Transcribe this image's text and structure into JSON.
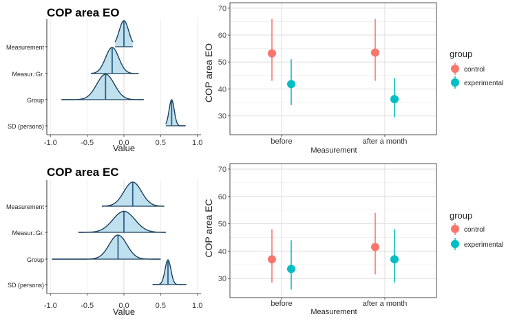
{
  "chart_data": [
    {
      "type": "ridgeline",
      "title": "COP area EO",
      "xlabel": "Value",
      "xlim": [
        -1.05,
        1.05
      ],
      "xticks": [
        -1.0,
        -0.5,
        0.0,
        0.5,
        1.0
      ],
      "xtick_labels": [
        "-1.0",
        "-0.5",
        "0.0",
        "0.5",
        "1.0"
      ],
      "rows": [
        {
          "label": "Measurement",
          "median": 0.0,
          "spread": 0.065,
          "lo": -0.12,
          "hi": 0.12
        },
        {
          "label": "Measur.:Gr.",
          "median": -0.16,
          "spread": 0.09,
          "lo": -0.45,
          "hi": 0.2
        },
        {
          "label": "Group",
          "median": -0.25,
          "spread": 0.12,
          "lo": -0.85,
          "hi": 0.27
        },
        {
          "label": "SD (persons)",
          "median": 0.65,
          "spread": 0.035,
          "lo": 0.57,
          "hi": 0.84
        }
      ]
    },
    {
      "type": "ridgeline",
      "title": "COP area EC",
      "xlabel": "Value",
      "xlim": [
        -1.05,
        1.05
      ],
      "xticks": [
        -1.0,
        -0.5,
        0.0,
        0.5,
        1.0
      ],
      "xtick_labels": [
        "-1.0",
        "-0.5",
        "0.0",
        "0.5",
        "1.0"
      ],
      "rows": [
        {
          "label": "Measurement",
          "median": 0.12,
          "spread": 0.12,
          "lo": -0.3,
          "hi": 0.55
        },
        {
          "label": "Measur.:Gr.",
          "median": 0.0,
          "spread": 0.15,
          "lo": -0.62,
          "hi": 0.57
        },
        {
          "label": "Group",
          "median": -0.08,
          "spread": 0.12,
          "lo": -0.98,
          "hi": 0.5
        },
        {
          "label": "SD (persons)",
          "median": 0.6,
          "spread": 0.04,
          "lo": 0.39,
          "hi": 0.85
        }
      ]
    },
    {
      "type": "point-range",
      "ylabel": "COP area EO",
      "xlabel": "Measurement",
      "categories": [
        "before",
        "after a month"
      ],
      "ylim": [
        23,
        72
      ],
      "yticks": [
        30,
        40,
        50,
        60,
        70
      ],
      "series": [
        {
          "name": "control",
          "color": "#f8766d",
          "values": [
            53.2,
            53.5
          ],
          "lower": [
            43.0,
            43.0
          ],
          "upper": [
            66.0,
            66.0
          ]
        },
        {
          "name": "experimental",
          "color": "#00bfc4",
          "values": [
            41.8,
            36.2
          ],
          "lower": [
            34.0,
            29.5
          ],
          "upper": [
            51.0,
            44.0
          ]
        }
      ],
      "legend_title": "group",
      "legend_position": "right"
    },
    {
      "type": "point-range",
      "ylabel": "COP area EC",
      "xlabel": "Measurement",
      "categories": [
        "before",
        "after a month"
      ],
      "ylim": [
        23,
        72
      ],
      "yticks": [
        30,
        40,
        50,
        60,
        70
      ],
      "series": [
        {
          "name": "control",
          "color": "#f8766d",
          "values": [
            37.0,
            41.5
          ],
          "lower": [
            28.5,
            31.5
          ],
          "upper": [
            48.0,
            54.0
          ]
        },
        {
          "name": "experimental",
          "color": "#00bfc4",
          "values": [
            33.5,
            37.0
          ],
          "lower": [
            26.0,
            28.5
          ],
          "upper": [
            44.0,
            48.0
          ]
        }
      ],
      "legend_title": "group",
      "legend_position": "right"
    }
  ],
  "style": {
    "ridge_fill": "#bfe0ee",
    "ridge_stroke": "#1a3f5c",
    "ridge_median": "#2c5f84",
    "panel_bg": "#ffffff",
    "panel_border": "#4d4d4d",
    "grid_major": "#dedede",
    "grid_minor": "#efefef",
    "axis_text": "#4d4d4d"
  }
}
